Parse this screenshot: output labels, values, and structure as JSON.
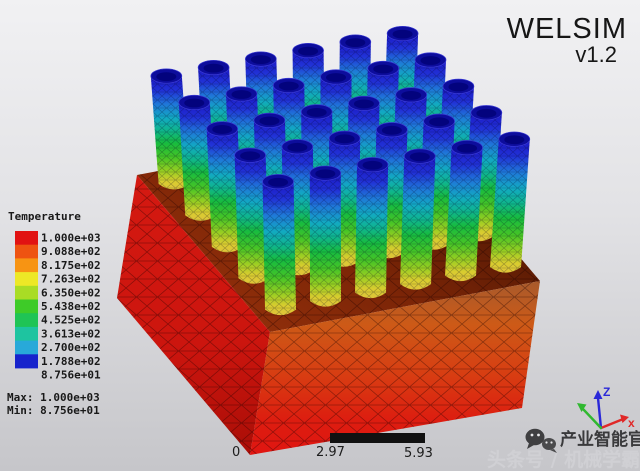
{
  "brand": {
    "name": "WELSIM",
    "version": "v1.2"
  },
  "legend": {
    "title": "Temperature",
    "values": [
      "1.000e+03",
      "9.088e+02",
      "8.175e+02",
      "7.263e+02",
      "6.350e+02",
      "5.438e+02",
      "4.525e+02",
      "3.613e+02",
      "2.700e+02",
      "1.788e+02",
      "8.756e+01"
    ],
    "band_colors": [
      "#e11212",
      "#ee5311",
      "#f79413",
      "#ede826",
      "#a9dc25",
      "#3ecb28",
      "#1fc455",
      "#1ec4a0",
      "#28a9d9",
      "#1723cc"
    ],
    "max_line": "Max: 1.000e+03",
    "min_line": "Min: 8.756e+01"
  },
  "ruler": {
    "start": "0",
    "mid": "2.97",
    "end": "5.93",
    "bar_color": "#111111"
  },
  "axes": {
    "z_label": "Z",
    "x_label": "x",
    "y_label": "y",
    "z_color": "#2a28d8",
    "x_color": "#e02828",
    "y_color": "#30b830"
  },
  "watermark": {
    "icon": "wechat-icon",
    "line1": "产业智能官",
    "line2": "头条号 / 机械学霸"
  },
  "scene": {
    "description": "FEM thermal result: pin-fin heat sink, 5x6 cylinder array on hot base block",
    "rows": 5,
    "cols": 6,
    "pin_gradient": [
      [
        0,
        "#1c17c4"
      ],
      [
        0.13,
        "#2132d6"
      ],
      [
        0.25,
        "#1f78d8"
      ],
      [
        0.37,
        "#12a9c2"
      ],
      [
        0.48,
        "#0fb58c"
      ],
      [
        0.59,
        "#17bb3f"
      ],
      [
        0.72,
        "#46c426"
      ],
      [
        0.84,
        "#98ce22"
      ],
      [
        0.93,
        "#d8cc2f"
      ],
      [
        1,
        "#dfc43a"
      ]
    ],
    "cap_color": "#0d0d9c",
    "cap_rim_color": "#3b3bd6",
    "cap_inner_color": "#03037d",
    "base_colors": {
      "top": [
        "#501803",
        "#7c2507",
        "#8f2e0a"
      ],
      "left": [
        "#d41911",
        "#cc150e",
        "#ab0e07"
      ],
      "right": [
        "#a85a2c",
        "#cd5a17",
        "#d83c12",
        "#dd1d10",
        "#e01511"
      ]
    },
    "background": [
      "#f1f1f3",
      "#e2e2e5",
      "#c6c6ca"
    ]
  }
}
